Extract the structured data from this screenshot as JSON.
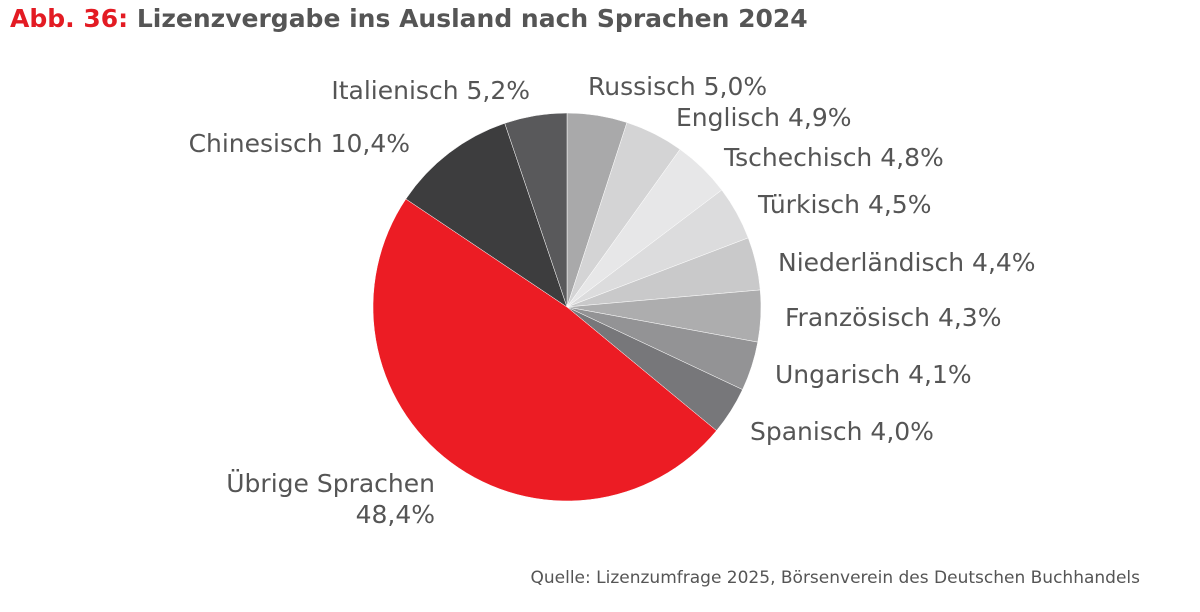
{
  "figure": {
    "prefix": "Abb. 36:",
    "title": "Lizenzvergabe ins Ausland nach Sprachen 2024",
    "source": "Quelle: Lizenzumfrage 2025, Börsenverein des Deutschen Buchhandels"
  },
  "chart_data": {
    "type": "pie",
    "title": "Lizenzvergabe ins Ausland nach Sprachen 2024",
    "unit": "%",
    "start": "12 o'clock, clockwise",
    "slices": [
      {
        "name": "Russisch",
        "value": 5.0,
        "label": "Russisch 5,0%",
        "color": "#a9a9aa"
      },
      {
        "name": "Englisch",
        "value": 4.9,
        "label": "Englisch 4,9%",
        "color": "#d4d4d5"
      },
      {
        "name": "Tschechisch",
        "value": 4.8,
        "label": "Tschechisch 4,8%",
        "color": "#e7e7e8"
      },
      {
        "name": "Türkisch",
        "value": 4.5,
        "label": "Türkisch 4,5%",
        "color": "#dcdcdd"
      },
      {
        "name": "Niederländisch",
        "value": 4.4,
        "label": "Niederländisch 4,4%",
        "color": "#c9c9ca"
      },
      {
        "name": "Französisch",
        "value": 4.3,
        "label": "Französisch 4,3%",
        "color": "#adadae"
      },
      {
        "name": "Ungarisch",
        "value": 4.1,
        "label": "Ungarisch 4,1%",
        "color": "#939395"
      },
      {
        "name": "Spanisch",
        "value": 4.0,
        "label": "Spanisch 4,0%",
        "color": "#77777a"
      },
      {
        "name": "Übrige Sprachen",
        "value": 48.4,
        "label": [
          "Übrige Sprachen",
          "48,4%"
        ],
        "color": "#ec1c24"
      },
      {
        "name": "Chinesisch",
        "value": 10.4,
        "label": "Chinesisch 10,4%",
        "color": "#3d3d3e"
      },
      {
        "name": "Italienisch",
        "value": 5.2,
        "label": "Italienisch 5,2%",
        "color": "#59595b"
      }
    ]
  }
}
